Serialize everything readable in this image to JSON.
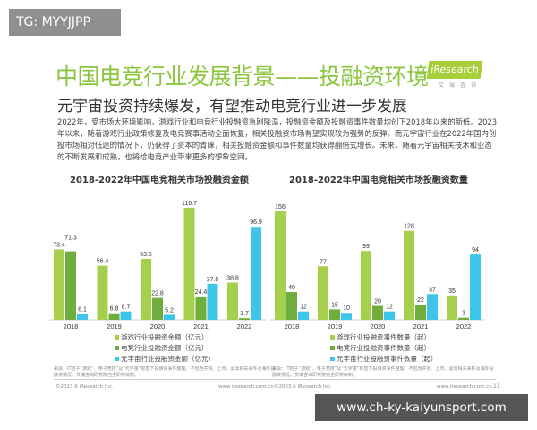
{
  "overlay": {
    "tg": "TG: MYYJJPP",
    "watermark": "www.ch-ky-kaiyunsport.com"
  },
  "header": {
    "title": "中国电竞行业发展背景——投融资环境",
    "logo": "iResearch",
    "logo_sub": "艾瑞咨询",
    "subtitle": "元宇宙投资持续爆发，有望推动电竞行业进一步发展"
  },
  "paragraph": "2022年，受市场大环境影响，游戏行业和电竞行业投融资急剧降温，投融资金额及投融资事件数量均创下2018年以来的新低。2023年以来，随着游戏行业政策修复及电竞赛事活动全面恢复，相关投融资市场有望实现较为强势的反弹。而元宇宙行业在2022年国内创投市场相对低迷的情况下，仍获得了资本的青睐，相关投融资金额和事件数量均获得翻倍式增长。未来，随着元宇宙相关技术和业态的不断发展和成熟，也将给电竞产业带来更多的想象空间。",
  "colors": {
    "title": "#8cc63f",
    "game": "#a5cf4c",
    "esports": "#6fae3e",
    "metaverse": "#3ec6ea"
  },
  "chart_data": [
    {
      "type": "bar",
      "title": "2018-2022年中国电竞相关市场投融资金额",
      "categories": [
        "2018",
        "2019",
        "2020",
        "2021",
        "2022"
      ],
      "series": [
        {
          "name": "游戏行业投融资金额（亿元）",
          "values": [
            73.4,
            56.4,
            63.5,
            116.7,
            38.8
          ]
        },
        {
          "name": "电竞行业投融资金额（亿元）",
          "values": [
            71.3,
            6.8,
            22.8,
            24.4,
            1.7
          ]
        },
        {
          "name": "元宇宙行业投融资金额（亿元）",
          "values": [
            6.1,
            8.7,
            5.2,
            37.5,
            96.9
          ]
        }
      ],
      "legend": "bottom"
    },
    {
      "type": "bar",
      "title": "2018-2022年中国电竞相关市场投融资数量",
      "categories": [
        "2018",
        "2019",
        "2020",
        "2021",
        "2022"
      ],
      "series": [
        {
          "name": "游戏行业投融资事件数量（起）",
          "values": [
            156,
            77,
            99,
            128,
            35
          ]
        },
        {
          "name": "电竞行业投融资事件数量（起）",
          "values": [
            40,
            15,
            20,
            22,
            3
          ]
        },
        {
          "name": "元宇宙行业投融资事件数量（起）",
          "values": [
            12,
            10,
            12,
            37,
            94
          ]
        }
      ],
      "legend": "bottom"
    }
  ],
  "footer": {
    "note": "来源：IT桔子“游戏”、电子竞技”及“元宇宙”标签下投融资事件整理，不包含并购、上市、退出相关事件及海外投融资情况。艾瑞咨询研究院自主研究绘制。",
    "copyright": "©2023.6 iResearch Inc.",
    "url": "www.iresearch.com.cn",
    "page": "11"
  }
}
